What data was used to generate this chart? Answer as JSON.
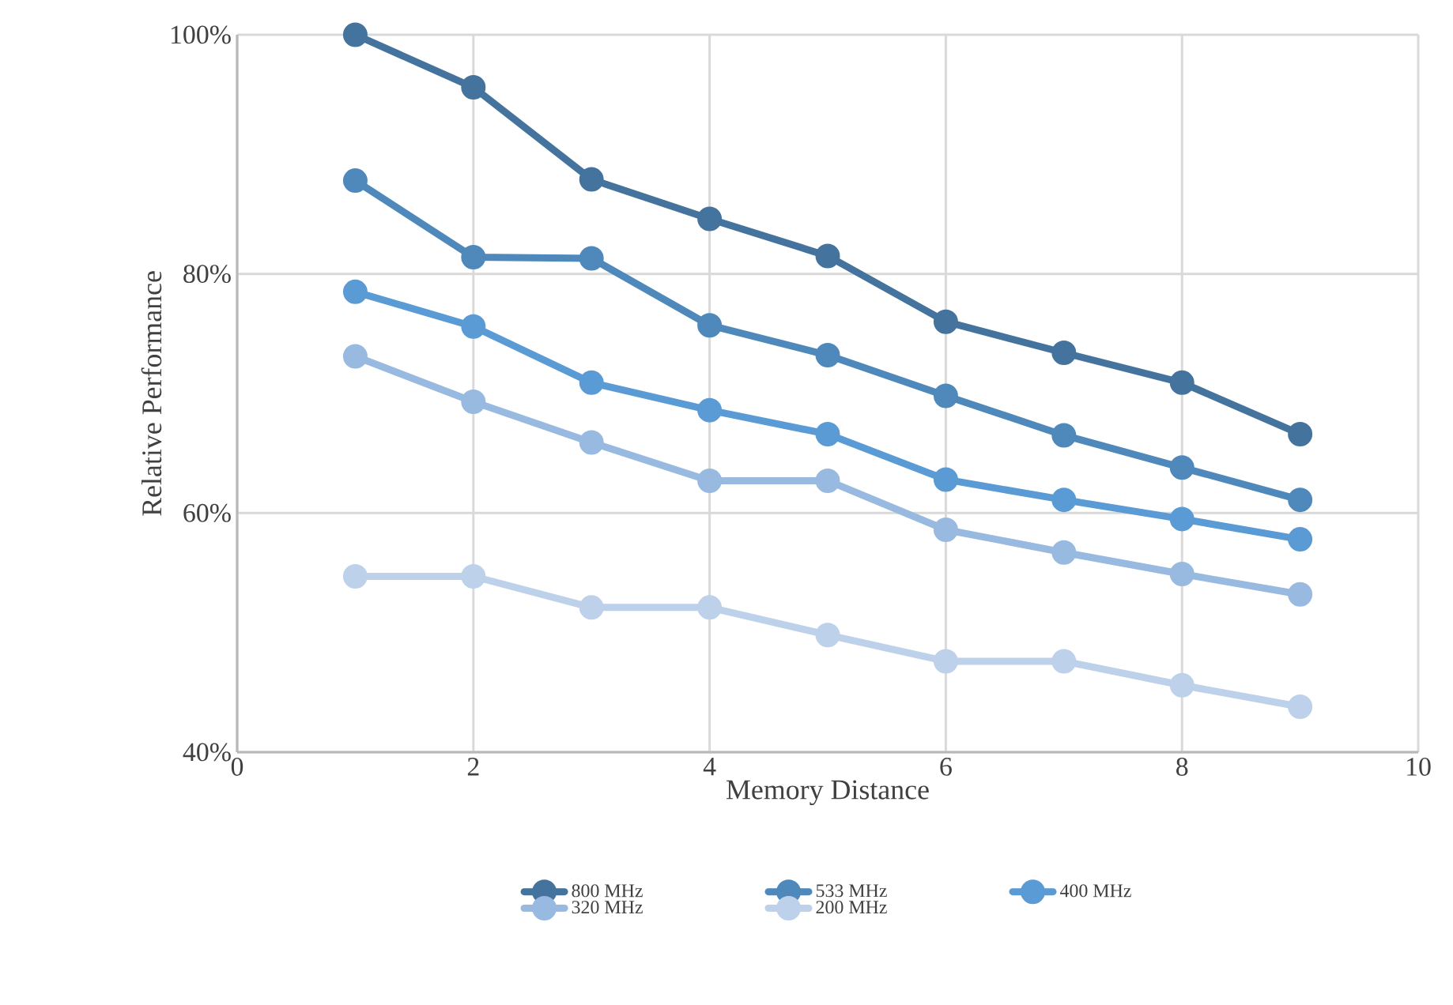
{
  "chart_data": {
    "type": "line",
    "xlabel": "Memory Distance",
    "ylabel": "Relative Performance",
    "xlim": [
      0,
      10
    ],
    "xticks": [
      0,
      2,
      4,
      6,
      8,
      10
    ],
    "ylim": [
      40,
      100
    ],
    "yticks": [
      {
        "value": 40,
        "label": "40%"
      },
      {
        "value": 60,
        "label": "60%"
      },
      {
        "value": 80,
        "label": "80%"
      },
      {
        "value": 100,
        "label": "100%"
      }
    ],
    "x": [
      1,
      2,
      3,
      4,
      5,
      6,
      7,
      8,
      9
    ],
    "grid": true,
    "legend": "bottom",
    "marker": "circle",
    "line_style": "solid",
    "series": [
      {
        "name": "800 MHz",
        "color": "#44739e",
        "values": [
          100,
          95.6,
          87.9,
          84.6,
          81.5,
          76.0,
          73.4,
          70.9,
          66.6
        ]
      },
      {
        "name": "533 MHz",
        "color": "#4f88ba",
        "values": [
          87.8,
          81.4,
          81.3,
          75.7,
          73.2,
          69.8,
          66.5,
          63.8,
          61.1
        ]
      },
      {
        "name": "400 MHz",
        "color": "#5b9bd5",
        "values": [
          78.5,
          75.6,
          70.9,
          68.6,
          66.6,
          62.8,
          61.1,
          59.5,
          57.8
        ]
      },
      {
        "name": "320 MHz",
        "color": "#98b9e0",
        "values": [
          73.1,
          69.3,
          65.9,
          62.7,
          62.7,
          58.6,
          56.7,
          54.9,
          53.2
        ]
      },
      {
        "name": "200 MHz",
        "color": "#bdd1ea",
        "values": [
          54.7,
          54.7,
          52.1,
          52.1,
          49.8,
          47.6,
          47.6,
          45.6,
          43.8
        ]
      }
    ]
  }
}
